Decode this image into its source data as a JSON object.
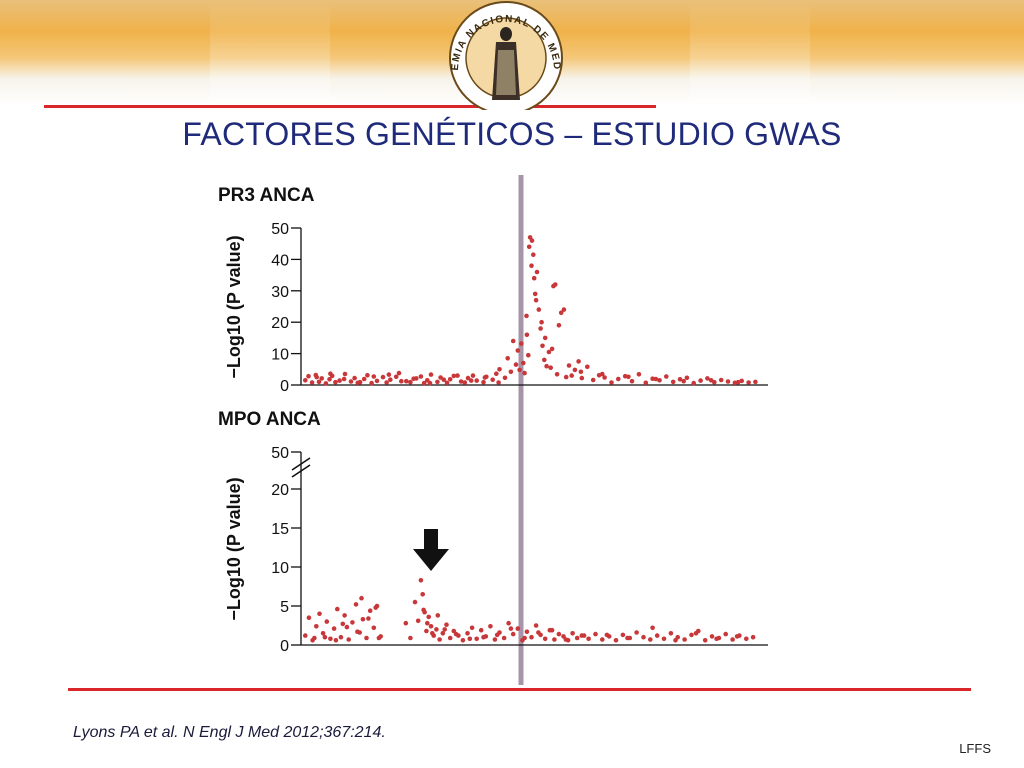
{
  "slide": {
    "title": "FACTORES GENÉTICOS – ESTUDIO GWAS",
    "citation": "Lyons PA et al. N Engl J Med 2012;367:214.",
    "author": "LFFS",
    "logo_text": "ACADEMIA NACIONAL DE MEDICINA",
    "colors": {
      "title": "#1f2b7a",
      "rule": "#d9262b",
      "points": "#c8373a",
      "marker": "#a894a8"
    }
  },
  "chart_data": [
    {
      "type": "scatter",
      "title": "PR3 ANCA",
      "ylabel": "−Log10 (P value)",
      "xlabel": "",
      "ylim": [
        0,
        50
      ],
      "yticks": [
        0,
        10,
        20,
        30,
        40,
        50
      ],
      "grid": false,
      "x": [
        0.5,
        1.2,
        2.0,
        2.8,
        3.5,
        4.1,
        5.0,
        5.8,
        6.4,
        7.1,
        8.0,
        9.2,
        10.5,
        11.3,
        12.0,
        13.4,
        14.1,
        15.0,
        16.2,
        17.5,
        18.3,
        19.1,
        20.4,
        21.0,
        22.6,
        23.5,
        24.2,
        25.8,
        26.5,
        27.2,
        28.0,
        29.4,
        30.1,
        31.5,
        32.2,
        33.0,
        34.6,
        35.4,
        36.1,
        37.2,
        38.0,
        39.5,
        40.1,
        41.5,
        42.3,
        43.0,
        44.2,
        44.8,
        45.5,
        46.0,
        46.6,
        47.0,
        47.4,
        47.8,
        48.2,
        48.5,
        48.9,
        49.3,
        49.7,
        50.1,
        50.4,
        50.8,
        51.2,
        51.6,
        52.0,
        52.4,
        52.8,
        53.3,
        53.8,
        54.2,
        54.8,
        55.2,
        55.6,
        56.0,
        56.5,
        57.1,
        57.6,
        58.2,
        58.8,
        59.5,
        60.3,
        61.0,
        62.2,
        63.5,
        64.8,
        66.0,
        67.5,
        69.0,
        70.5,
        72.0,
        73.5,
        75.0,
        76.5,
        78.0,
        79.5,
        81.0,
        82.5,
        84.0,
        85.5,
        87.0,
        88.5,
        90.0,
        91.5,
        93.0,
        94.5,
        96.0,
        97.5,
        99.0,
        3.0,
        6.0,
        9.0,
        12.5,
        15.5,
        18.8,
        21.5,
        24.8,
        27.8,
        30.8,
        33.8,
        36.8,
        39.8,
        42.8,
        60.8,
        65.5,
        71.2,
        77.2,
        83.3,
        89.3,
        95.2,
        49.0,
        49.5,
        50.0,
        50.6,
        51.0,
        52.2,
        53.0,
        54.5
      ],
      "y": [
        1.5,
        2.8,
        0.8,
        3.2,
        1.0,
        2.1,
        0.5,
        1.8,
        2.9,
        0.9,
        1.4,
        3.5,
        1.1,
        2.2,
        0.7,
        1.9,
        3.1,
        0.6,
        1.3,
        2.5,
        0.8,
        1.7,
        2.6,
        3.8,
        1.2,
        0.9,
        2.0,
        2.7,
        0.6,
        1.5,
        3.3,
        1.0,
        2.4,
        0.7,
        1.8,
        2.9,
        1.1,
        0.8,
        2.2,
        3.0,
        1.4,
        0.9,
        2.6,
        1.7,
        3.6,
        5.0,
        2.3,
        8.5,
        4.2,
        14.0,
        6.5,
        11.0,
        4.8,
        13.2,
        7.0,
        3.8,
        22.0,
        9.5,
        47.0,
        46.0,
        41.5,
        29.0,
        36.0,
        24.0,
        18.0,
        12.5,
        8.0,
        6.0,
        10.5,
        5.5,
        31.5,
        32.0,
        3.4,
        19.0,
        23.0,
        24.0,
        2.5,
        6.2,
        3.0,
        4.8,
        7.5,
        2.2,
        5.8,
        1.6,
        3.1,
        2.4,
        0.8,
        1.9,
        2.8,
        1.2,
        3.4,
        0.7,
        2.0,
        1.5,
        2.7,
        1.0,
        1.8,
        2.3,
        0.6,
        1.4,
        2.1,
        0.9,
        1.6,
        1.1,
        0.7,
        1.3,
        0.8,
        1.0,
        2.5,
        3.6,
        1.9,
        0.9,
        2.7,
        3.3,
        1.2,
        2.1,
        0.6,
        1.7,
        3.0,
        1.4,
        2.4,
        0.8,
        4.2,
        3.5,
        2.6,
        1.9,
        1.2,
        1.5,
        0.9,
        16.0,
        44.0,
        38.0,
        34.0,
        27.0,
        20.0,
        15.0,
        11.5
      ]
    },
    {
      "type": "scatter",
      "title": "MPO ANCA",
      "ylabel": "−Log10 (P value)",
      "xlabel": "",
      "ylim": [
        0,
        50
      ],
      "yticks": [
        0,
        5,
        10,
        15,
        20,
        50
      ],
      "axis_break": true,
      "grid": false,
      "x": [
        0.5,
        1.3,
        2.1,
        2.9,
        3.6,
        4.4,
        5.2,
        6.0,
        6.8,
        7.5,
        8.3,
        9.1,
        10.0,
        10.8,
        11.6,
        12.4,
        13.1,
        13.9,
        14.7,
        15.5,
        16.2,
        17.0,
        22.5,
        23.5,
        24.5,
        25.2,
        25.8,
        26.2,
        26.6,
        27.0,
        27.5,
        28.0,
        28.6,
        29.2,
        29.9,
        30.6,
        31.4,
        32.2,
        33.0,
        34.0,
        35.0,
        36.0,
        37.0,
        38.0,
        39.0,
        40.0,
        41.0,
        42.0,
        43.0,
        44.0,
        45.0,
        46.0,
        47.0,
        48.0,
        49.0,
        50.0,
        51.0,
        52.0,
        53.0,
        54.0,
        55.0,
        56.0,
        57.0,
        58.0,
        59.0,
        60.0,
        61.0,
        62.5,
        64.0,
        65.5,
        67.0,
        68.5,
        70.0,
        71.5,
        73.0,
        74.5,
        76.0,
        77.5,
        79.0,
        80.5,
        82.0,
        83.5,
        85.0,
        86.5,
        88.0,
        89.5,
        91.0,
        92.5,
        94.0,
        95.5,
        97.0,
        98.5,
        2.5,
        4.8,
        7.2,
        9.6,
        11.9,
        14.3,
        16.6,
        8.7,
        12.8,
        15.9,
        26.4,
        27.2,
        28.3,
        29.5,
        31.0,
        33.5,
        36.5,
        39.5,
        42.5,
        45.5,
        48.5,
        51.5,
        54.5,
        57.5,
        61.5,
        66.5,
        71.0,
        76.5,
        81.5,
        86.0,
        90.5,
        95.0
      ],
      "y": [
        1.2,
        3.5,
        0.6,
        2.4,
        4.0,
        1.5,
        3.0,
        0.8,
        2.1,
        4.6,
        1.0,
        3.8,
        0.7,
        2.9,
        5.2,
        1.6,
        3.3,
        0.9,
        4.4,
        2.2,
        5.0,
        1.1,
        2.8,
        0.9,
        5.5,
        3.1,
        8.3,
        6.5,
        4.2,
        1.8,
        3.6,
        2.4,
        1.2,
        2.0,
        0.7,
        1.5,
        2.6,
        0.9,
        1.8,
        1.2,
        0.6,
        1.5,
        2.2,
        0.8,
        1.9,
        1.1,
        2.4,
        0.7,
        1.6,
        0.9,
        2.8,
        1.4,
        2.1,
        0.6,
        1.7,
        1.0,
        2.5,
        1.3,
        0.8,
        1.9,
        0.7,
        1.4,
        1.1,
        0.6,
        1.5,
        0.9,
        1.2,
        0.8,
        1.4,
        0.7,
        1.1,
        0.6,
        1.3,
        0.9,
        1.6,
        1.0,
        0.7,
        1.2,
        0.8,
        1.5,
        1.0,
        0.7,
        1.3,
        1.8,
        0.6,
        1.1,
        0.9,
        1.4,
        0.7,
        1.2,
        0.8,
        1.0,
        0.9,
        1.0,
        0.6,
        2.3,
        1.7,
        3.4,
        0.9,
        2.7,
        6.0,
        4.8,
        4.5,
        2.8,
        1.5,
        3.8,
        2.0,
        1.4,
        0.8,
        1.0,
        1.3,
        2.1,
        0.9,
        1.6,
        1.9,
        0.7,
        1.2,
        1.3,
        0.9,
        2.2,
        0.6,
        1.5,
        0.8,
        1.1
      ]
    }
  ],
  "marker_x": 48.6,
  "arrow_x": 28.0
}
